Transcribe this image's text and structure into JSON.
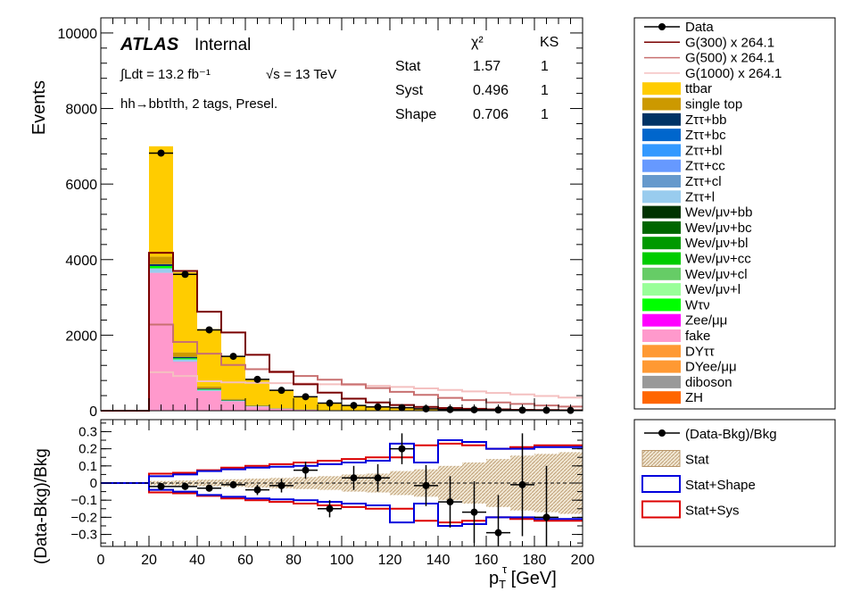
{
  "chart_data": [
    {
      "type": "bar",
      "panel": "main",
      "x_bin_edges": [
        0,
        10,
        20,
        30,
        40,
        50,
        60,
        70,
        80,
        90,
        100,
        110,
        120,
        130,
        140,
        150,
        160,
        170,
        180,
        190,
        200
      ],
      "xlim": [
        0,
        200
      ],
      "ylim": [
        0,
        10400
      ],
      "y_ticks": [
        0,
        2000,
        4000,
        6000,
        8000,
        10000
      ],
      "ylabel": "Events",
      "label_atlas": "ATLAS",
      "label_internal": "Internal",
      "label_lumi": "∫Ldt = 13.2 fb⁻¹",
      "label_energy": "√s = 13 TeV",
      "label_region": "hh→bbτlτh, 2 tags, Presel.",
      "stats_table": {
        "header": [
          "",
          "χ²",
          "KS"
        ],
        "rows": [
          {
            "name": "Stat",
            "chi2": "1.57",
            "ks": "1"
          },
          {
            "name": "Syst",
            "chi2": "0.496",
            "ks": "1"
          },
          {
            "name": "Shape",
            "chi2": "0.706",
            "ks": "1"
          }
        ]
      },
      "stack": [
        {
          "name": "fake",
          "color": "#ff99cc",
          "values": [
            0,
            0,
            3650,
            1300,
            520,
            250,
            110,
            50,
            25,
            12,
            6,
            3,
            2,
            1,
            1,
            0,
            0,
            0,
            0,
            0
          ]
        },
        {
          "name": "Zττ+l",
          "color": "#99ccee",
          "values": [
            0,
            0,
            120,
            60,
            30,
            15,
            8,
            4,
            2,
            1,
            1,
            0,
            0,
            0,
            0,
            0,
            0,
            0,
            0,
            0
          ]
        },
        {
          "name": "Wτν",
          "color": "#00ff00",
          "values": [
            0,
            0,
            60,
            30,
            15,
            8,
            4,
            2,
            1,
            0,
            0,
            0,
            0,
            0,
            0,
            0,
            0,
            0,
            0,
            0
          ]
        },
        {
          "name": "Zττ+bb",
          "color": "#003366",
          "values": [
            0,
            0,
            50,
            35,
            20,
            12,
            6,
            3,
            2,
            1,
            0,
            0,
            0,
            0,
            0,
            0,
            0,
            0,
            0,
            0
          ]
        },
        {
          "name": "single top",
          "color": "#cc9900",
          "values": [
            0,
            0,
            200,
            120,
            55,
            30,
            15,
            8,
            4,
            2,
            1,
            1,
            0,
            0,
            0,
            0,
            0,
            0,
            0,
            0
          ]
        },
        {
          "name": "ttbar",
          "color": "#ffcc00",
          "values": [
            0,
            0,
            2920,
            2120,
            1520,
            1115,
            685,
            474,
            320,
            184,
            122,
            86,
            68,
            49,
            29,
            25,
            20,
            15,
            11,
            8
          ]
        }
      ],
      "data_points": {
        "name": "Data",
        "x": [
          25,
          35,
          45,
          55,
          65,
          75,
          85,
          95,
          105,
          115,
          125,
          135,
          145,
          155,
          165,
          175,
          185,
          195
        ],
        "y": [
          6820,
          3610,
          2140,
          1440,
          830,
          540,
          370,
          200,
          140,
          100,
          80,
          50,
          30,
          25,
          20,
          15,
          12,
          8
        ],
        "xerr": 5
      },
      "signals": [
        {
          "name": "G(300) x 264.1",
          "color": "#7a0000",
          "values": [
            0,
            0,
            4180,
            3700,
            2620,
            2070,
            1480,
            1030,
            700,
            480,
            320,
            220,
            150,
            100,
            70,
            50,
            35,
            25,
            18,
            12
          ]
        },
        {
          "name": "G(500) x 264.1",
          "color": "#c87070",
          "values": [
            0,
            0,
            2280,
            1820,
            1510,
            1210,
            1100,
            1020,
            920,
            820,
            700,
            600,
            500,
            420,
            340,
            280,
            220,
            180,
            140,
            110
          ]
        },
        {
          "name": "G(1000) x 264.1",
          "color": "#f4c0c0",
          "values": [
            0,
            0,
            1020,
            920,
            780,
            750,
            740,
            730,
            720,
            700,
            680,
            660,
            630,
            590,
            550,
            510,
            470,
            430,
            390,
            350
          ]
        }
      ],
      "legend": [
        {
          "label": "Data",
          "kind": "marker",
          "color": "#000000"
        },
        {
          "label": "G(300) x 264.1",
          "kind": "line",
          "color": "#7a0000"
        },
        {
          "label": "G(500) x 264.1",
          "kind": "line",
          "color": "#c87070"
        },
        {
          "label": "G(1000) x 264.1",
          "kind": "line",
          "color": "#f4c0c0"
        },
        {
          "label": "ttbar",
          "kind": "fill",
          "color": "#ffcc00"
        },
        {
          "label": "single top",
          "kind": "fill",
          "color": "#cc9900"
        },
        {
          "label": "Zττ+bb",
          "kind": "fill",
          "color": "#003366"
        },
        {
          "label": "Zττ+bc",
          "kind": "fill",
          "color": "#0066cc"
        },
        {
          "label": "Zττ+bl",
          "kind": "fill",
          "color": "#3399ff"
        },
        {
          "label": "Zττ+cc",
          "kind": "fill",
          "color": "#6699ff"
        },
        {
          "label": "Zττ+cl",
          "kind": "fill",
          "color": "#6699cc"
        },
        {
          "label": "Zττ+l",
          "kind": "fill",
          "color": "#99ccee"
        },
        {
          "label": "Weν/μν+bb",
          "kind": "fill",
          "color": "#003300"
        },
        {
          "label": "Weν/μν+bc",
          "kind": "fill",
          "color": "#006600"
        },
        {
          "label": "Weν/μν+bl",
          "kind": "fill",
          "color": "#009900"
        },
        {
          "label": "Weν/μν+cc",
          "kind": "fill",
          "color": "#00cc00"
        },
        {
          "label": "Weν/μν+cl",
          "kind": "fill",
          "color": "#66cc66"
        },
        {
          "label": "Weν/μν+l",
          "kind": "fill",
          "color": "#99ff99"
        },
        {
          "label": "Wτν",
          "kind": "fill",
          "color": "#00ff00"
        },
        {
          "label": "Zee/μμ",
          "kind": "fill",
          "color": "#ff00ff"
        },
        {
          "label": "fake",
          "kind": "fill",
          "color": "#ff99cc"
        },
        {
          "label": "DYττ",
          "kind": "fill",
          "color": "#ff9933"
        },
        {
          "label": "DYee/μμ",
          "kind": "fill",
          "color": "#ff9933"
        },
        {
          "label": "diboson",
          "kind": "fill",
          "color": "#999999"
        },
        {
          "label": "ZH",
          "kind": "fill",
          "color": "#ff6600"
        }
      ]
    },
    {
      "type": "scatter",
      "panel": "ratio",
      "xlim": [
        0,
        200
      ],
      "ylim": [
        -0.37,
        0.37
      ],
      "x_ticks": [
        0,
        20,
        40,
        60,
        80,
        100,
        120,
        140,
        160,
        180,
        200
      ],
      "y_ticks": [
        -0.3,
        -0.2,
        -0.1,
        0,
        0.1,
        0.2,
        0.3
      ],
      "y_tick_labels": [
        "−0.3",
        "−0.2",
        "−0.1",
        "0",
        "0.1",
        "0.2",
        "0.3"
      ],
      "xlabel_main": "p",
      "xlabel_sub": "T",
      "xlabel_sup": "τ",
      "xlabel_unit": " [GeV]",
      "ylabel": "(Data-Bkg)/Bkg",
      "ratio_points": {
        "x": [
          25,
          35,
          45,
          55,
          65,
          75,
          85,
          95,
          105,
          115,
          125,
          135,
          145,
          155,
          165,
          175,
          185
        ],
        "y": [
          -0.02,
          -0.02,
          -0.03,
          -0.01,
          -0.04,
          -0.015,
          0.075,
          -0.15,
          0.03,
          0.03,
          0.2,
          -0.015,
          -0.11,
          -0.17,
          -0.29,
          -0.01,
          -0.2
        ],
        "yerr": [
          0.015,
          0.015,
          0.02,
          0.02,
          0.03,
          0.04,
          0.05,
          0.05,
          0.07,
          0.08,
          0.09,
          0.12,
          0.15,
          0.18,
          0.22,
          0.3,
          0.3
        ]
      },
      "stat_band": [
        0,
        0,
        0.012,
        0.015,
        0.02,
        0.022,
        0.026,
        0.03,
        0.035,
        0.04,
        0.05,
        0.055,
        0.07,
        0.08,
        0.1,
        0.12,
        0.14,
        0.16,
        0.17,
        0.18
      ],
      "stat_shape_band": [
        0,
        0,
        0.04,
        0.05,
        0.07,
        0.08,
        0.09,
        0.095,
        0.1,
        0.11,
        0.12,
        0.13,
        0.23,
        0.12,
        0.25,
        0.24,
        0.2,
        0.2,
        0.21,
        0.21
      ],
      "stat_sys_band": [
        0,
        0,
        0.055,
        0.06,
        0.075,
        0.09,
        0.1,
        0.11,
        0.12,
        0.13,
        0.14,
        0.15,
        0.15,
        0.22,
        0.23,
        0.22,
        0.2,
        0.21,
        0.22,
        0.22
      ],
      "legend": [
        {
          "label": "(Data-Bkg)/Bkg",
          "kind": "marker",
          "color": "#000000"
        },
        {
          "label": "Stat",
          "kind": "hatch",
          "color": "#c8aa78"
        },
        {
          "label": "Stat+Shape",
          "kind": "box",
          "color": "#0000dd"
        },
        {
          "label": "Stat+Sys",
          "kind": "box",
          "color": "#dd0000"
        }
      ]
    }
  ]
}
